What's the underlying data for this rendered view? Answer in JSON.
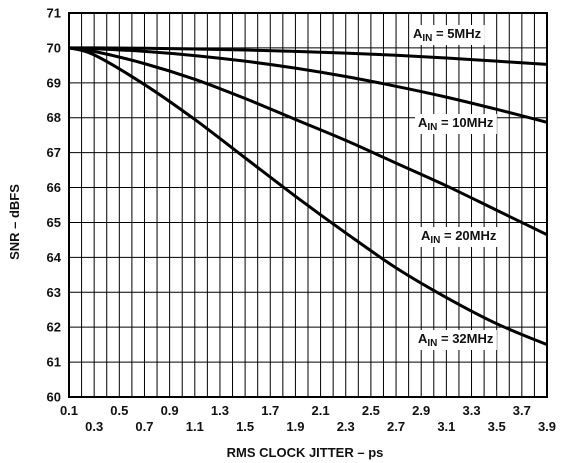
{
  "chart_data": {
    "type": "line",
    "title": "",
    "xlabel": "RMS CLOCK JITTER – ps",
    "ylabel": "SNR – dBFS",
    "xlim": [
      0.1,
      3.9
    ],
    "ylim": [
      60,
      71
    ],
    "grid": true,
    "x_minor_step": 0.1,
    "x_ticks_top": [
      "0.1",
      "0.5",
      "0.9",
      "1.3",
      "1.7",
      "2.1",
      "2.5",
      "2.9",
      "3.3",
      "3.7"
    ],
    "x_ticks_bottom": [
      "0.3",
      "0.7",
      "1.1",
      "1.5",
      "1.9",
      "2.3",
      "2.7",
      "3.1",
      "3.5",
      "3.9"
    ],
    "y_ticks": [
      "60",
      "61",
      "62",
      "63",
      "64",
      "65",
      "66",
      "67",
      "68",
      "69",
      "70",
      "71"
    ],
    "series": [
      {
        "name": "A_IN = 5MHz",
        "label_main": "A",
        "label_sub": "IN",
        "label_rest": " = 5MHz",
        "x": [
          0.1,
          0.3,
          0.7,
          1.1,
          1.5,
          1.9,
          2.3,
          2.7,
          3.1,
          3.5,
          3.9
        ],
        "y": [
          70.0,
          70.0,
          69.99,
          69.97,
          69.94,
          69.9,
          69.85,
          69.79,
          69.71,
          69.62,
          69.53
        ]
      },
      {
        "name": "A_IN = 10MHz",
        "label_main": "A",
        "label_sub": "IN",
        "label_rest": " = 10MHz",
        "x": [
          0.1,
          0.3,
          0.7,
          1.1,
          1.5,
          1.9,
          2.3,
          2.7,
          3.1,
          3.5,
          3.9
        ],
        "y": [
          70.0,
          69.98,
          69.9,
          69.78,
          69.62,
          69.42,
          69.18,
          68.9,
          68.59,
          68.24,
          67.87
        ]
      },
      {
        "name": "A_IN = 20MHz",
        "label_main": "A",
        "label_sub": "IN",
        "label_rest": " = 20MHz",
        "x": [
          0.1,
          0.3,
          0.7,
          1.1,
          1.5,
          1.9,
          2.3,
          2.7,
          3.1,
          3.5,
          3.9
        ],
        "y": [
          70.0,
          69.9,
          69.55,
          69.1,
          68.55,
          67.95,
          67.35,
          66.7,
          66.05,
          65.35,
          64.65
        ]
      },
      {
        "name": "A_IN = 32MHz",
        "label_main": "A",
        "label_sub": "IN",
        "label_rest": " = 32MHz",
        "x": [
          0.1,
          0.3,
          0.7,
          1.1,
          1.5,
          1.9,
          2.3,
          2.7,
          3.1,
          3.5,
          3.9
        ],
        "y": [
          70.0,
          69.8,
          68.95,
          67.95,
          66.85,
          65.75,
          64.7,
          63.7,
          62.85,
          62.1,
          61.5
        ]
      }
    ]
  }
}
